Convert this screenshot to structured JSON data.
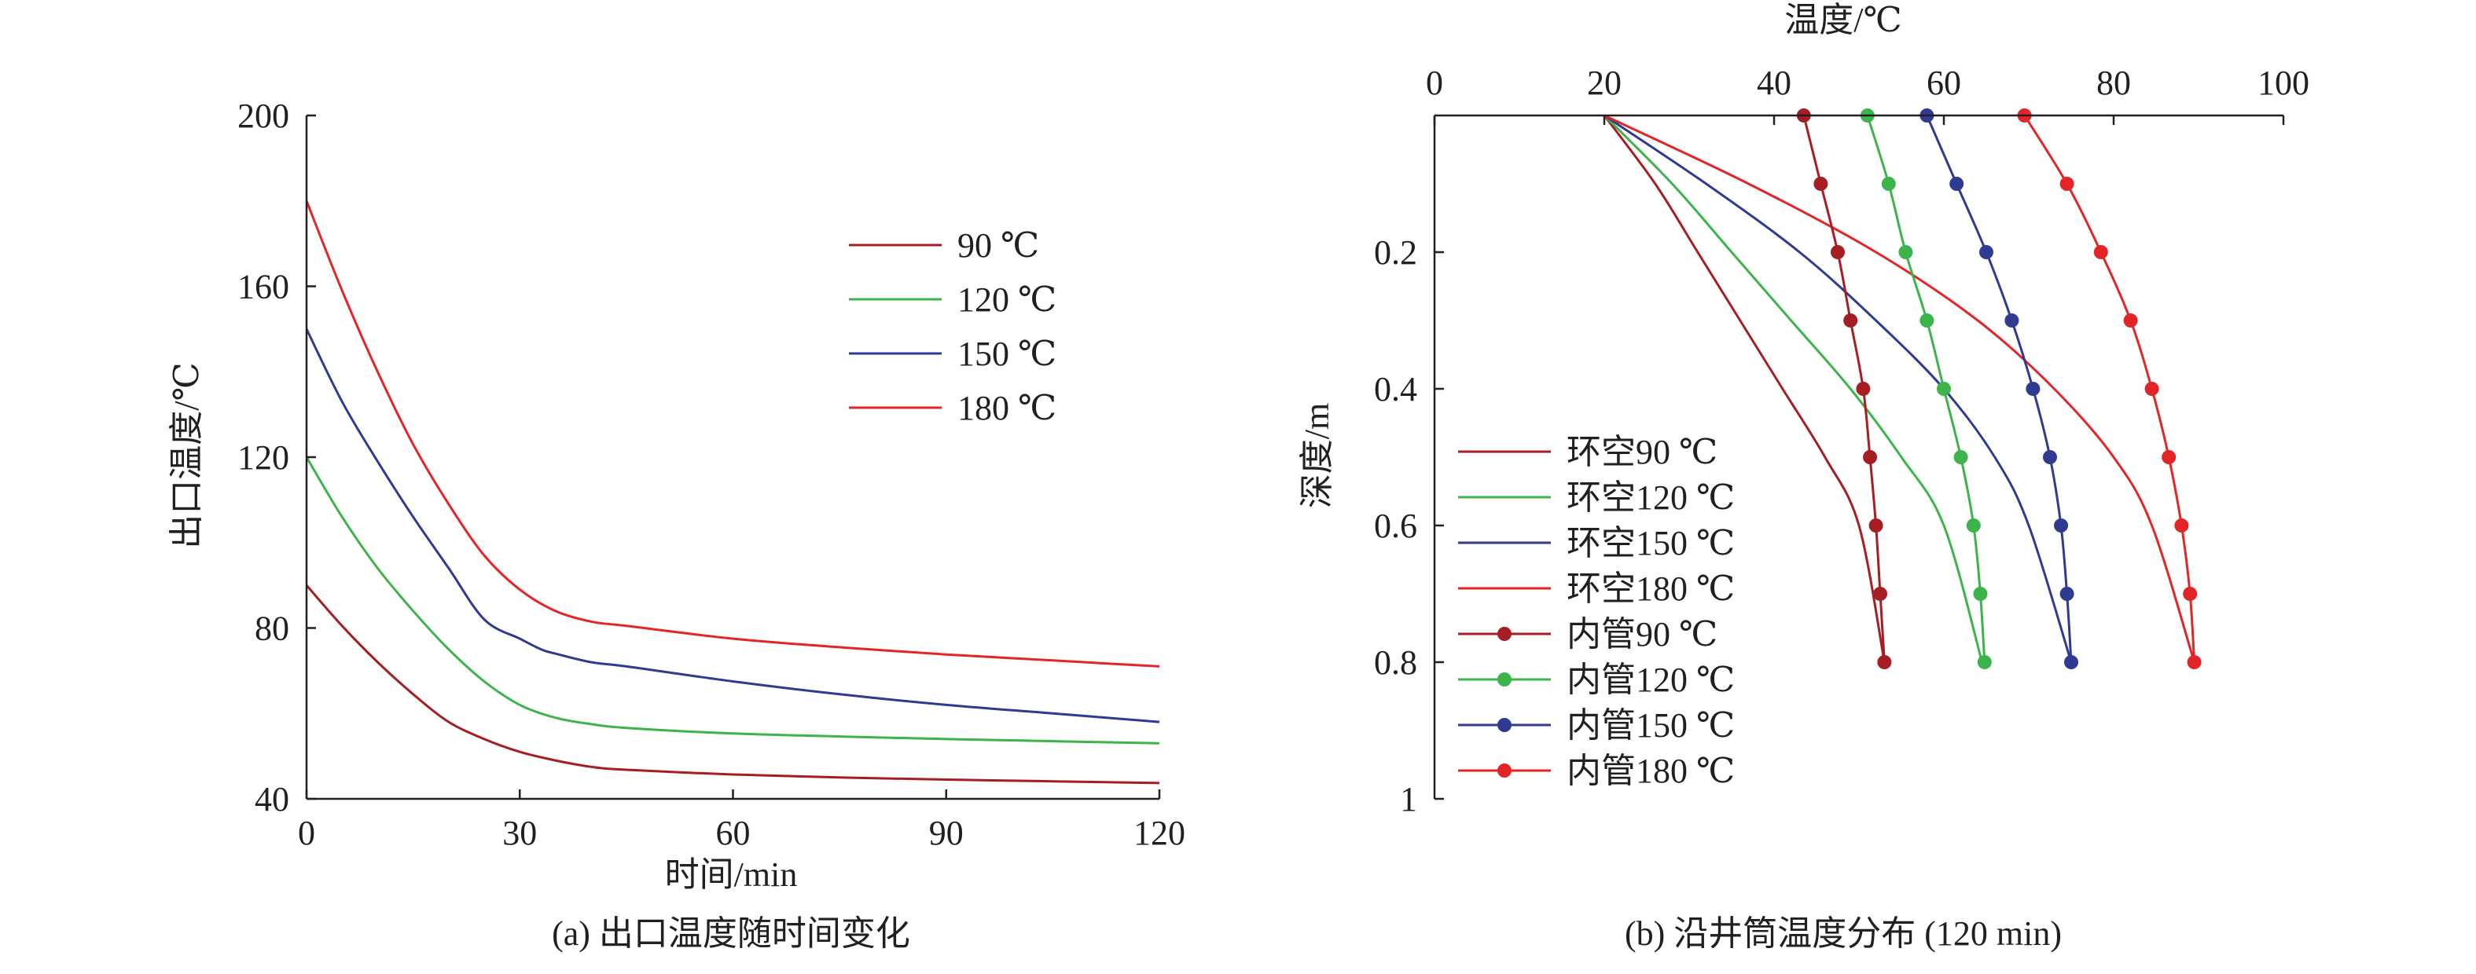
{
  "chart_data": [
    {
      "type": "line",
      "caption": "(a) 出口温度随时间变化",
      "xlabel": "时间/min",
      "ylabel": "出口温度/℃",
      "xlim": [
        0,
        120
      ],
      "ylim": [
        40,
        200
      ],
      "xticks": [
        0,
        30,
        60,
        90,
        120
      ],
      "yticks": [
        40,
        80,
        120,
        160,
        200
      ],
      "grid": false,
      "legend_position": "top-right",
      "series": [
        {
          "name": "90 ℃",
          "color": "#a51e24",
          "x": [
            0,
            5,
            10,
            15,
            20,
            25,
            30,
            35,
            40,
            45,
            60,
            75,
            90,
            105,
            120
          ],
          "y": [
            90,
            80.5,
            72,
            64.5,
            58,
            54,
            51,
            49,
            47.5,
            46.8,
            45.7,
            45,
            44.5,
            44.1,
            43.7
          ]
        },
        {
          "name": "120 ℃",
          "color": "#3cb44b",
          "x": [
            0,
            5,
            10,
            15,
            20,
            25,
            30,
            35,
            40,
            45,
            60,
            75,
            90,
            105,
            120
          ],
          "y": [
            120,
            106,
            94,
            84,
            75,
            67.5,
            62,
            59,
            57.5,
            56.6,
            55.3,
            54.6,
            54,
            53.5,
            53
          ]
        },
        {
          "name": "150 ℃",
          "color": "#2e3b91",
          "x": [
            0,
            5,
            10,
            15,
            20,
            25,
            30,
            33,
            35,
            40,
            45,
            60,
            75,
            90,
            105,
            120
          ],
          "y": [
            150,
            133,
            119,
            106,
            94,
            82,
            77.5,
            75,
            74,
            72,
            71,
            67.5,
            64.5,
            62,
            60,
            58
          ]
        },
        {
          "name": "180 ℃",
          "color": "#e42527",
          "x": [
            0,
            5,
            10,
            15,
            20,
            25,
            30,
            35,
            40,
            45,
            60,
            75,
            90,
            105,
            120
          ],
          "y": [
            180,
            159,
            140,
            123,
            109,
            97,
            89,
            84,
            81.5,
            80.5,
            77.5,
            75.5,
            73.8,
            72.4,
            71
          ]
        }
      ]
    },
    {
      "type": "line",
      "caption": "(b) 沿井筒温度分布 (120 min)",
      "xlabel": "温度/℃",
      "ylabel": "深度/m",
      "xlim": [
        0,
        100
      ],
      "ylim": [
        1,
        0
      ],
      "xticks": [
        0,
        20,
        40,
        60,
        80,
        100
      ],
      "yticks": [
        0.2,
        0.4,
        0.6,
        0.8,
        1
      ],
      "x_axis_position": "top",
      "y_axis_inverted": true,
      "grid": false,
      "legend_position": "bottom-left",
      "series": [
        {
          "name": "环空90 ℃",
          "color": "#a51e24",
          "markers": false,
          "temperature": [
            20,
            26,
            31,
            36,
            41,
            46,
            50,
            53
          ],
          "depth": [
            0,
            0.1,
            0.2,
            0.3,
            0.4,
            0.5,
            0.6,
            0.8
          ]
        },
        {
          "name": "环空120 ℃",
          "color": "#3cb44b",
          "markers": false,
          "temperature": [
            20,
            28,
            35,
            42,
            49,
            55,
            60,
            64.5
          ],
          "depth": [
            0,
            0.1,
            0.2,
            0.3,
            0.4,
            0.5,
            0.6,
            0.8
          ]
        },
        {
          "name": "环空150 ℃",
          "color": "#2e3b91",
          "markers": false,
          "temperature": [
            20,
            32,
            43,
            52,
            60,
            66,
            70,
            75
          ],
          "depth": [
            0,
            0.1,
            0.2,
            0.3,
            0.4,
            0.5,
            0.6,
            0.8
          ]
        },
        {
          "name": "环空180 ℃",
          "color": "#e42527",
          "markers": false,
          "temperature": [
            20,
            37,
            52,
            64,
            73,
            80,
            84.5,
            89.5
          ],
          "depth": [
            0,
            0.1,
            0.2,
            0.3,
            0.4,
            0.5,
            0.6,
            0.8
          ]
        },
        {
          "name": "内管90 ℃",
          "color": "#a51e24",
          "markers": true,
          "temperature": [
            43.5,
            45.5,
            47.5,
            49,
            50.5,
            51.3,
            52,
            52.5,
            53
          ],
          "depth": [
            0,
            0.1,
            0.2,
            0.3,
            0.4,
            0.5,
            0.6,
            0.7,
            0.8
          ]
        },
        {
          "name": "内管120 ℃",
          "color": "#3cb44b",
          "markers": true,
          "temperature": [
            51,
            53.5,
            55.5,
            58,
            60,
            62,
            63.5,
            64.3,
            64.8
          ],
          "depth": [
            0,
            0.1,
            0.2,
            0.3,
            0.4,
            0.5,
            0.6,
            0.7,
            0.8
          ]
        },
        {
          "name": "内管150 ℃",
          "color": "#2e3b91",
          "markers": true,
          "temperature": [
            58,
            61.5,
            65,
            68,
            70.5,
            72.5,
            73.8,
            74.5,
            75
          ],
          "depth": [
            0,
            0.1,
            0.2,
            0.3,
            0.4,
            0.5,
            0.6,
            0.7,
            0.8
          ]
        },
        {
          "name": "内管180 ℃",
          "color": "#e42527",
          "markers": true,
          "temperature": [
            69.5,
            74.5,
            78.5,
            82,
            84.5,
            86.5,
            88,
            89,
            89.5
          ],
          "depth": [
            0,
            0.1,
            0.2,
            0.3,
            0.4,
            0.5,
            0.6,
            0.7,
            0.8
          ]
        }
      ]
    }
  ]
}
